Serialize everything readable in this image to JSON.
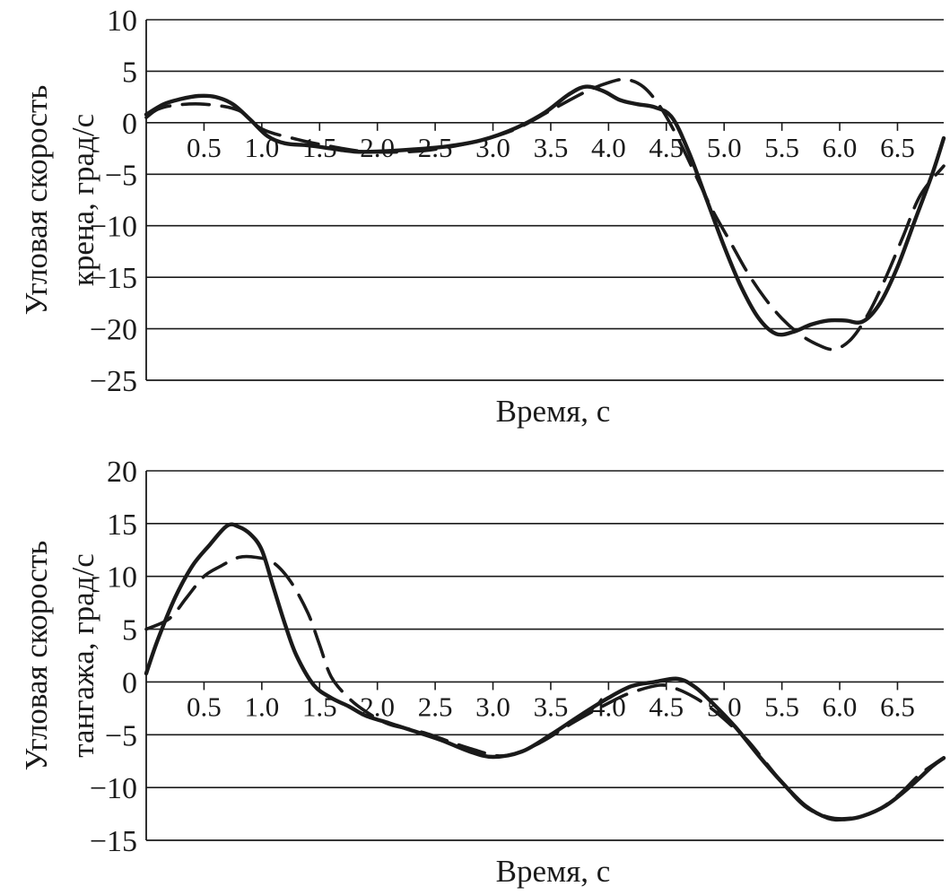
{
  "chart_data": [
    {
      "type": "line",
      "title": "",
      "xlabel": "Время, с",
      "ylabel_lines": [
        "Угловая скорость",
        "крена, град/с"
      ],
      "ylim": [
        -25,
        10
      ],
      "xlim": [
        0,
        6.9
      ],
      "yticks": [
        "10",
        "5",
        "0",
        "−5",
        "−10",
        "−15",
        "−20",
        "−25"
      ],
      "yticks_values": [
        10,
        5,
        0,
        -5,
        -10,
        -15,
        -20,
        -25
      ],
      "xticks": [
        "0.5",
        "1.0",
        "1.5",
        "2.0",
        "2.5",
        "3.0",
        "3.5",
        "4.0",
        "4.5",
        "5.0",
        "5.5",
        "6.0",
        "6.5"
      ],
      "xticks_values": [
        0.5,
        1.0,
        1.5,
        2.0,
        2.5,
        3.0,
        3.5,
        4.0,
        4.5,
        5.0,
        5.5,
        6.0,
        6.5
      ],
      "grid": "horizontal",
      "series": [
        {
          "name": "solid",
          "style": "solid",
          "x": [
            0,
            0.15,
            0.3,
            0.45,
            0.6,
            0.75,
            0.9,
            1.05,
            1.2,
            1.4,
            1.6,
            1.8,
            2.0,
            2.3,
            2.6,
            2.9,
            3.2,
            3.45,
            3.65,
            3.8,
            3.95,
            4.1,
            4.25,
            4.4,
            4.55,
            4.7,
            4.85,
            5.0,
            5.15,
            5.3,
            5.45,
            5.6,
            5.75,
            5.9,
            6.05,
            6.2,
            6.35,
            6.5,
            6.65,
            6.8,
            6.9
          ],
          "y": [
            0.8,
            1.8,
            2.3,
            2.6,
            2.5,
            1.8,
            0.3,
            -1.3,
            -2.0,
            -2.2,
            -2.5,
            -2.8,
            -2.8,
            -2.6,
            -2.3,
            -1.7,
            -0.5,
            1.0,
            2.7,
            3.5,
            3.1,
            2.2,
            1.8,
            1.5,
            0.5,
            -3.0,
            -7.5,
            -12.0,
            -16.0,
            -19.0,
            -20.5,
            -20.3,
            -19.6,
            -19.2,
            -19.2,
            -19.3,
            -17.5,
            -14.0,
            -9.5,
            -5.0,
            -1.5
          ]
        },
        {
          "name": "dashed",
          "style": "dashed",
          "x": [
            0,
            0.1,
            0.25,
            0.5,
            0.8,
            1.0,
            1.3,
            1.6,
            1.9,
            2.3,
            2.6,
            2.9,
            3.2,
            3.5,
            3.8,
            4.0,
            4.15,
            4.3,
            4.45,
            4.6,
            4.75,
            4.9,
            5.05,
            5.2,
            5.35,
            5.5,
            5.65,
            5.8,
            5.95,
            6.1,
            6.25,
            6.4,
            6.55,
            6.7,
            6.9
          ],
          "y": [
            0.5,
            1.3,
            1.7,
            1.8,
            1.2,
            -0.6,
            -1.6,
            -2.3,
            -2.8,
            -2.8,
            -2.4,
            -1.7,
            -0.6,
            1.2,
            3.0,
            3.9,
            4.2,
            3.5,
            1.5,
            -1.5,
            -5.0,
            -8.5,
            -11.5,
            -14.5,
            -17.0,
            -19.0,
            -20.5,
            -21.5,
            -22.0,
            -21.0,
            -18.5,
            -15.0,
            -11.0,
            -7.0,
            -4.2
          ]
        }
      ]
    },
    {
      "type": "line",
      "title": "",
      "xlabel": "Время, с",
      "ylabel_lines": [
        "Угловая скорость",
        "тангажа, град/с"
      ],
      "ylim": [
        -15,
        20
      ],
      "xlim": [
        0,
        6.9
      ],
      "yticks": [
        "20",
        "15",
        "10",
        "5",
        "0",
        "−5",
        "−10",
        "−15"
      ],
      "yticks_values": [
        20,
        15,
        10,
        5,
        0,
        -5,
        -10,
        -15
      ],
      "xticks": [
        "0.5",
        "1.0",
        "1.5",
        "2.0",
        "2.5",
        "3.0",
        "3.5",
        "4.0",
        "4.5",
        "5.0",
        "5.5",
        "6.0",
        "6.5"
      ],
      "xticks_values": [
        0.5,
        1.0,
        1.5,
        2.0,
        2.5,
        3.0,
        3.5,
        4.0,
        4.5,
        5.0,
        5.5,
        6.0,
        6.5
      ],
      "grid": "horizontal",
      "series": [
        {
          "name": "solid",
          "style": "solid",
          "x": [
            0,
            0.1,
            0.25,
            0.4,
            0.55,
            0.7,
            0.8,
            0.9,
            1.0,
            1.1,
            1.2,
            1.3,
            1.45,
            1.6,
            1.75,
            1.9,
            2.1,
            2.3,
            2.55,
            2.8,
            3.0,
            3.25,
            3.5,
            3.75,
            4.0,
            4.2,
            4.4,
            4.6,
            4.75,
            4.9,
            5.1,
            5.3,
            5.5,
            5.7,
            5.9,
            6.05,
            6.2,
            6.4,
            6.6,
            6.8,
            6.9
          ],
          "y": [
            0.8,
            4.0,
            8.0,
            11.0,
            13.0,
            14.8,
            14.7,
            14.0,
            12.5,
            9.0,
            5.5,
            2.5,
            -0.3,
            -1.5,
            -2.3,
            -3.2,
            -3.9,
            -4.6,
            -5.5,
            -6.6,
            -7.1,
            -6.6,
            -5.0,
            -3.2,
            -1.5,
            -0.4,
            0.0,
            0.3,
            -0.5,
            -2.0,
            -4.3,
            -7.0,
            -9.5,
            -11.7,
            -12.9,
            -13.0,
            -12.7,
            -11.7,
            -10.0,
            -8.0,
            -7.2
          ]
        },
        {
          "name": "dashed",
          "style": "dashed",
          "x": [
            0,
            0.2,
            0.35,
            0.5,
            0.65,
            0.8,
            0.95,
            1.1,
            1.25,
            1.4,
            1.5,
            1.6,
            1.75,
            1.9,
            2.1,
            2.4,
            2.8,
            3.1,
            3.4,
            3.7,
            4.0,
            4.2,
            4.45,
            4.6,
            4.75,
            4.9,
            5.05,
            5.2,
            5.35,
            5.5,
            5.7,
            5.9,
            6.1,
            6.3,
            6.5,
            6.7,
            6.9
          ],
          "y": [
            5.0,
            6.0,
            8.0,
            10.0,
            11.0,
            11.8,
            11.8,
            11.3,
            9.5,
            6.5,
            3.5,
            0.5,
            -1.5,
            -2.8,
            -4.0,
            -4.8,
            -6.3,
            -7.0,
            -5.8,
            -3.8,
            -2.0,
            -1.0,
            -0.3,
            -0.7,
            -1.5,
            -2.6,
            -4.0,
            -5.5,
            -7.5,
            -9.5,
            -11.8,
            -12.8,
            -12.9,
            -12.3,
            -10.8,
            -8.7,
            -7.2
          ]
        }
      ]
    }
  ],
  "colors": {
    "line": "#1a1a1a",
    "grid": "#1a1a1a",
    "background": "#ffffff"
  }
}
